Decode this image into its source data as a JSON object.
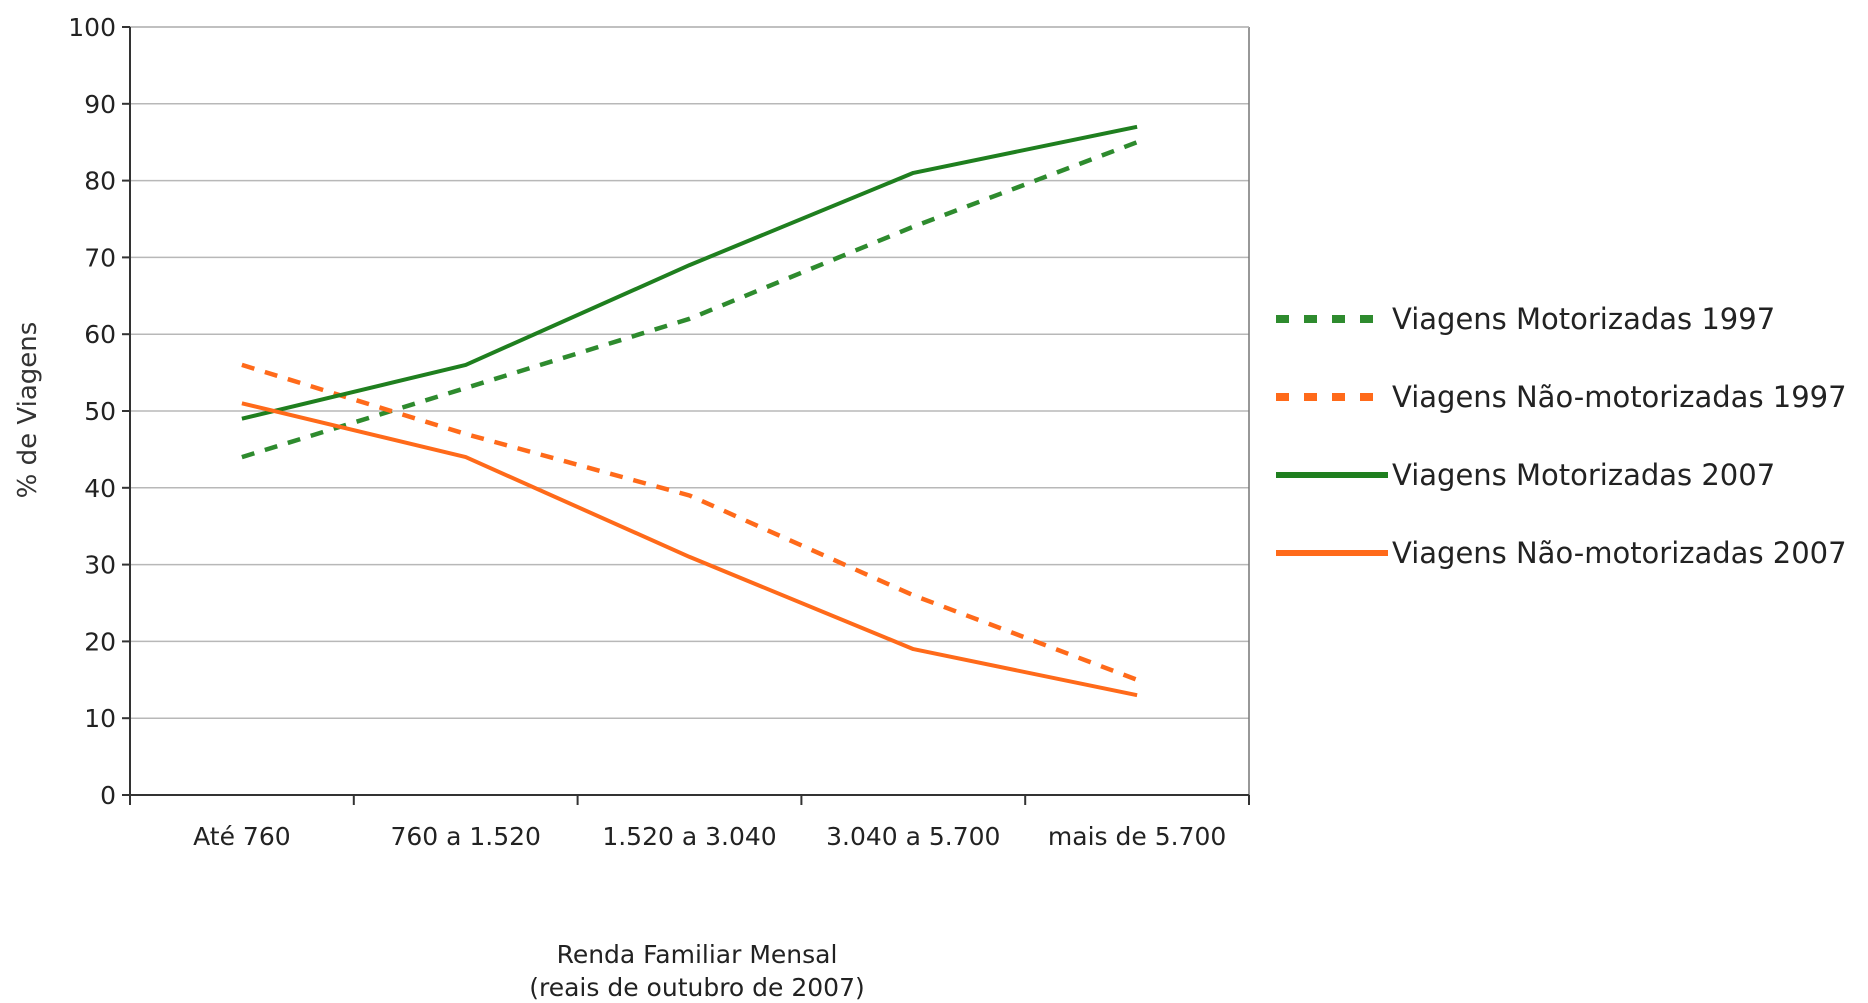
{
  "chart_data": {
    "type": "line",
    "categories": [
      "Até 760",
      "760 a 1.520",
      "1.520 a 3.040",
      "3.040 a 5.700",
      "mais de 5.700"
    ],
    "series": [
      {
        "name": "Viagens Motorizadas 1997",
        "values": [
          44,
          53,
          62,
          74,
          85
        ],
        "color": "#2e8b2e",
        "style": "dashed"
      },
      {
        "name": "Viagens Não-motorizadas 1997",
        "values": [
          56,
          47,
          39,
          26,
          15
        ],
        "color": "#ff6a1a",
        "style": "dashed"
      },
      {
        "name": "Viagens Motorizadas 2007",
        "values": [
          49,
          56,
          69,
          81,
          87
        ],
        "color": "#1f7f1f",
        "style": "solid"
      },
      {
        "name": "Viagens Não-motorizadas 2007",
        "values": [
          51,
          44,
          31,
          19,
          13
        ],
        "color": "#ff6a1a",
        "style": "solid"
      }
    ],
    "ylabel": "% de Viagens",
    "xlabel_lines": [
      "Renda Familiar Mensal",
      "(reais de outubro de 2007)"
    ],
    "ylim": [
      0,
      100
    ],
    "yticks": [
      0,
      10,
      20,
      30,
      40,
      50,
      60,
      70,
      80,
      90,
      100
    ],
    "grid": "horizontal",
    "legend_position": "right"
  }
}
